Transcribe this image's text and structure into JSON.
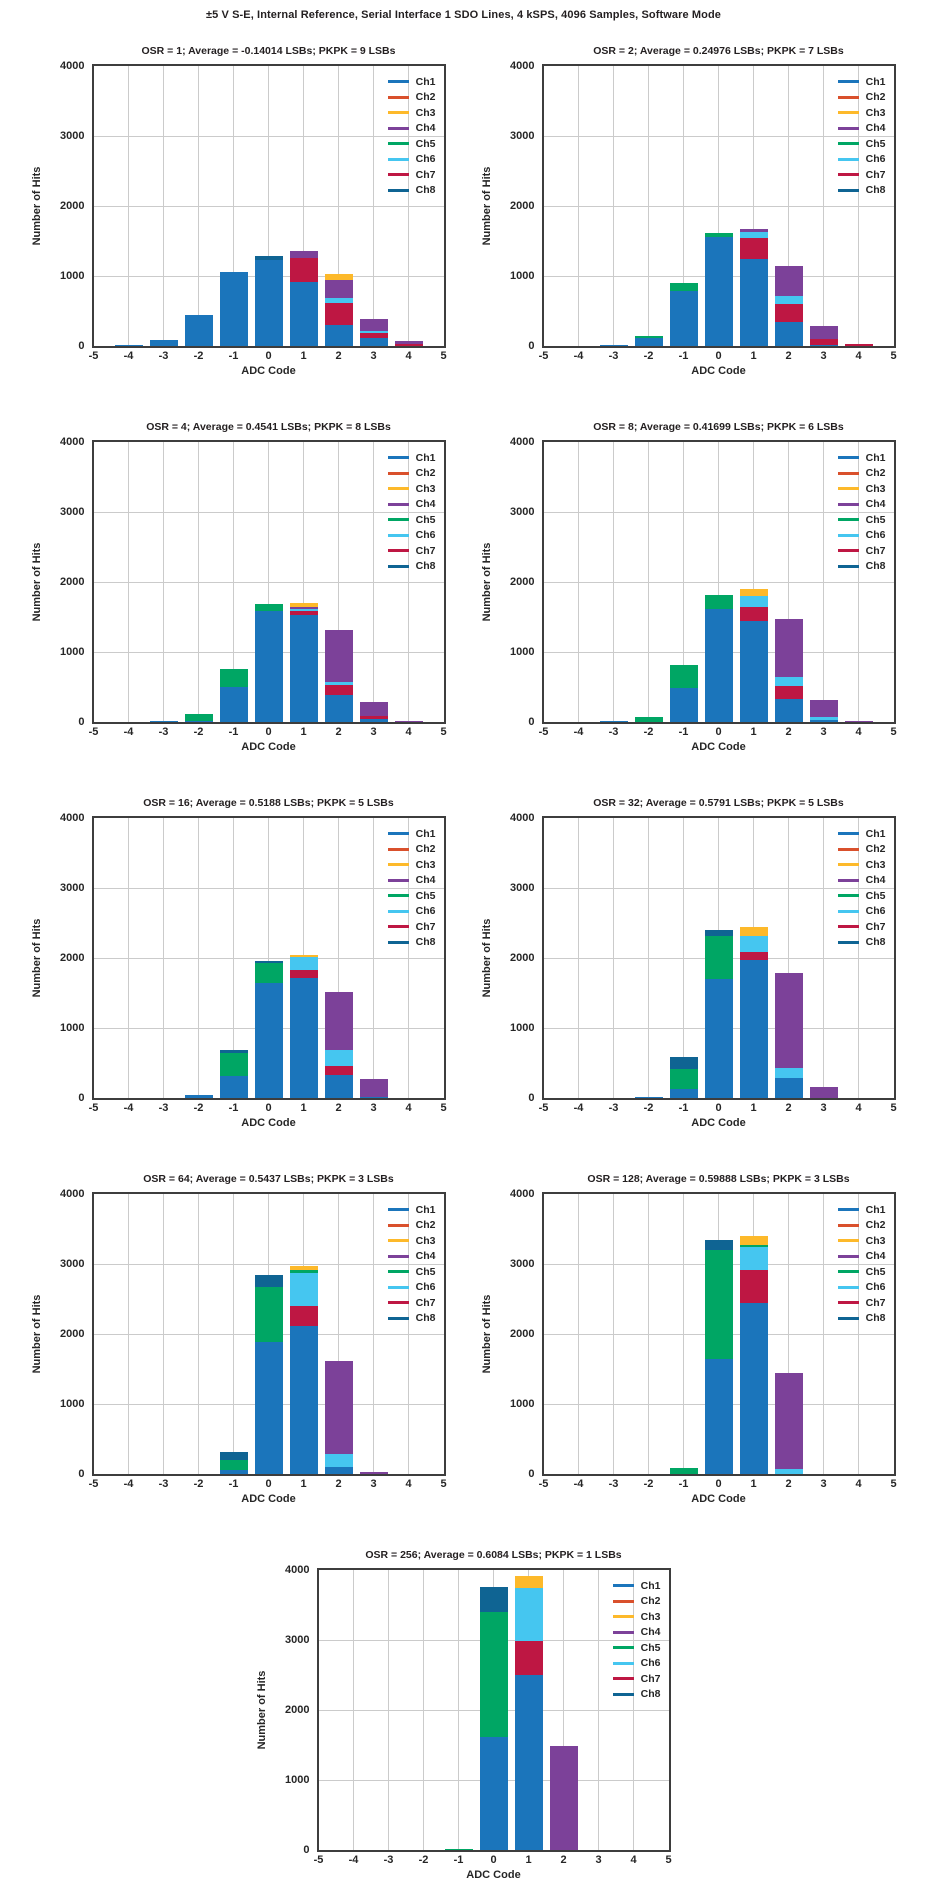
{
  "page": {
    "title": "±5 V S-E, Internal Reference, Serial Interface 1 SDO Lines, 4 kSPS, 4096 Samples, Software Mode"
  },
  "axis": {
    "xlabel": "ADC Code",
    "ylabel": "Number of Hits",
    "xlim": [
      -5,
      5
    ],
    "ylim": [
      0,
      4000
    ],
    "xticks": [
      -5,
      -4,
      -3,
      -2,
      -1,
      0,
      1,
      2,
      3,
      4,
      5
    ],
    "yticks": [
      0,
      1000,
      2000,
      3000,
      4000
    ],
    "grid": true
  },
  "legend": {
    "position": "top-right",
    "entries": [
      "Ch1",
      "Ch2",
      "Ch3",
      "Ch4",
      "Ch5",
      "Ch6",
      "Ch7",
      "Ch8"
    ]
  },
  "channel_colors": {
    "Ch1": "#1B75BB",
    "Ch2": "#D9502C",
    "Ch3": "#FDB92A",
    "Ch4": "#7C4199",
    "Ch5": "#00A664",
    "Ch6": "#45C6F0",
    "Ch7": "#BE1743",
    "Ch8": "#0F6493"
  },
  "chart_data": [
    {
      "type": "bar",
      "mode": "stacked",
      "osr": 1,
      "title": "OSR = 1; Average = -0.14014 LSBs; PKPK = 9 LSBs",
      "bars": [
        {
          "x": -4,
          "segments": [
            [
              "Ch1",
              15
            ]
          ]
        },
        {
          "x": -3,
          "segments": [
            [
              "Ch1",
              90
            ]
          ]
        },
        {
          "x": -2,
          "segments": [
            [
              "Ch1",
              440
            ]
          ]
        },
        {
          "x": -1,
          "segments": [
            [
              "Ch1",
              1060
            ]
          ]
        },
        {
          "x": 0,
          "segments": [
            [
              "Ch1",
              1230
            ],
            [
              "Ch8",
              50
            ]
          ]
        },
        {
          "x": 1,
          "segments": [
            [
              "Ch1",
              920
            ],
            [
              "Ch7",
              340
            ],
            [
              "Ch4",
              100
            ]
          ]
        },
        {
          "x": 2,
          "segments": [
            [
              "Ch1",
              300
            ],
            [
              "Ch7",
              320
            ],
            [
              "Ch6",
              60
            ],
            [
              "Ch4",
              270
            ],
            [
              "Ch3",
              80
            ]
          ]
        },
        {
          "x": 3,
          "segments": [
            [
              "Ch1",
              110
            ],
            [
              "Ch7",
              70
            ],
            [
              "Ch6",
              30
            ],
            [
              "Ch4",
              170
            ]
          ]
        },
        {
          "x": 4,
          "segments": [
            [
              "Ch7",
              30
            ],
            [
              "Ch4",
              40
            ]
          ]
        }
      ]
    },
    {
      "type": "bar",
      "mode": "stacked",
      "osr": 2,
      "title": "OSR = 2; Average = 0.24976 LSBs; PKPK = 7 LSBs",
      "bars": [
        {
          "x": -3,
          "segments": [
            [
              "Ch1",
              15
            ]
          ]
        },
        {
          "x": -2,
          "segments": [
            [
              "Ch1",
              120
            ],
            [
              "Ch5",
              20
            ]
          ]
        },
        {
          "x": -1,
          "segments": [
            [
              "Ch1",
              790
            ],
            [
              "Ch5",
              110
            ]
          ]
        },
        {
          "x": 0,
          "segments": [
            [
              "Ch1",
              1560
            ],
            [
              "Ch5",
              50
            ]
          ]
        },
        {
          "x": 1,
          "segments": [
            [
              "Ch1",
              1250
            ],
            [
              "Ch7",
              290
            ],
            [
              "Ch6",
              90
            ],
            [
              "Ch4",
              40
            ]
          ]
        },
        {
          "x": 2,
          "segments": [
            [
              "Ch1",
              340
            ],
            [
              "Ch7",
              260
            ],
            [
              "Ch6",
              120
            ],
            [
              "Ch4",
              430
            ]
          ]
        },
        {
          "x": 3,
          "segments": [
            [
              "Ch1",
              20
            ],
            [
              "Ch7",
              80
            ],
            [
              "Ch4",
              180
            ]
          ]
        },
        {
          "x": 4,
          "segments": [
            [
              "Ch7",
              25
            ]
          ]
        }
      ]
    },
    {
      "type": "bar",
      "mode": "stacked",
      "osr": 4,
      "title": "OSR = 4; Average = 0.4541 LSBs; PKPK = 8 LSBs",
      "bars": [
        {
          "x": -3,
          "segments": [
            [
              "Ch1",
              15
            ]
          ]
        },
        {
          "x": -2,
          "segments": [
            [
              "Ch1",
              10
            ],
            [
              "Ch5",
              110
            ]
          ]
        },
        {
          "x": -1,
          "segments": [
            [
              "Ch1",
              500
            ],
            [
              "Ch5",
              260
            ]
          ]
        },
        {
          "x": 0,
          "segments": [
            [
              "Ch1",
              1580
            ],
            [
              "Ch5",
              100
            ]
          ]
        },
        {
          "x": 1,
          "segments": [
            [
              "Ch1",
              1530
            ],
            [
              "Ch7",
              50
            ],
            [
              "Ch6",
              30
            ],
            [
              "Ch4",
              40
            ],
            [
              "Ch3",
              50
            ]
          ]
        },
        {
          "x": 2,
          "segments": [
            [
              "Ch1",
              390
            ],
            [
              "Ch7",
              140
            ],
            [
              "Ch6",
              40
            ],
            [
              "Ch4",
              750
            ]
          ]
        },
        {
          "x": 3,
          "segments": [
            [
              "Ch1",
              40
            ],
            [
              "Ch7",
              40
            ],
            [
              "Ch4",
              200
            ]
          ]
        },
        {
          "x": 4,
          "segments": [
            [
              "Ch4",
              15
            ]
          ]
        }
      ]
    },
    {
      "type": "bar",
      "mode": "stacked",
      "osr": 8,
      "title": "OSR = 8; Average = 0.41699 LSBs; PKPK = 6 LSBs",
      "bars": [
        {
          "x": -3,
          "segments": [
            [
              "Ch1",
              15
            ]
          ]
        },
        {
          "x": -2,
          "segments": [
            [
              "Ch5",
              70
            ]
          ]
        },
        {
          "x": -1,
          "segments": [
            [
              "Ch1",
              490
            ],
            [
              "Ch5",
              320
            ]
          ]
        },
        {
          "x": 0,
          "segments": [
            [
              "Ch1",
              1620
            ],
            [
              "Ch5",
              190
            ]
          ]
        },
        {
          "x": 1,
          "segments": [
            [
              "Ch1",
              1450
            ],
            [
              "Ch7",
              200
            ],
            [
              "Ch6",
              150
            ],
            [
              "Ch3",
              100
            ]
          ]
        },
        {
          "x": 2,
          "segments": [
            [
              "Ch1",
              330
            ],
            [
              "Ch7",
              180
            ],
            [
              "Ch6",
              140
            ],
            [
              "Ch4",
              820
            ]
          ]
        },
        {
          "x": 3,
          "segments": [
            [
              "Ch1",
              30
            ],
            [
              "Ch6",
              40
            ],
            [
              "Ch4",
              250
            ]
          ]
        },
        {
          "x": 4,
          "segments": [
            [
              "Ch4",
              15
            ]
          ]
        }
      ]
    },
    {
      "type": "bar",
      "mode": "stacked",
      "osr": 16,
      "title": "OSR = 16; Average = 0.5188 LSBs; PKPK = 5 LSBs",
      "bars": [
        {
          "x": -2,
          "segments": [
            [
              "Ch1",
              50
            ]
          ]
        },
        {
          "x": -1,
          "segments": [
            [
              "Ch1",
              320
            ],
            [
              "Ch5",
              330
            ],
            [
              "Ch8",
              40
            ]
          ]
        },
        {
          "x": 0,
          "segments": [
            [
              "Ch1",
              1650
            ],
            [
              "Ch5",
              280
            ],
            [
              "Ch8",
              30
            ]
          ]
        },
        {
          "x": 1,
          "segments": [
            [
              "Ch1",
              1720
            ],
            [
              "Ch7",
              110
            ],
            [
              "Ch6",
              180
            ],
            [
              "Ch3",
              30
            ]
          ]
        },
        {
          "x": 2,
          "segments": [
            [
              "Ch1",
              330
            ],
            [
              "Ch7",
              130
            ],
            [
              "Ch6",
              220
            ],
            [
              "Ch4",
              840
            ]
          ]
        },
        {
          "x": 3,
          "segments": [
            [
              "Ch1",
              20
            ],
            [
              "Ch4",
              250
            ]
          ]
        }
      ]
    },
    {
      "type": "bar",
      "mode": "stacked",
      "osr": 32,
      "title": "OSR = 32; Average = 0.5791 LSBs; PKPK = 5 LSBs",
      "bars": [
        {
          "x": -2,
          "segments": [
            [
              "Ch1",
              15
            ]
          ]
        },
        {
          "x": -1,
          "segments": [
            [
              "Ch1",
              130
            ],
            [
              "Ch5",
              290
            ],
            [
              "Ch8",
              160
            ]
          ]
        },
        {
          "x": 0,
          "segments": [
            [
              "Ch1",
              1700
            ],
            [
              "Ch5",
              610
            ],
            [
              "Ch8",
              90
            ]
          ]
        },
        {
          "x": 1,
          "segments": [
            [
              "Ch1",
              1970
            ],
            [
              "Ch7",
              120
            ],
            [
              "Ch6",
              220
            ],
            [
              "Ch3",
              140
            ]
          ]
        },
        {
          "x": 2,
          "segments": [
            [
              "Ch1",
              280
            ],
            [
              "Ch6",
              150
            ],
            [
              "Ch4",
              1350
            ]
          ]
        },
        {
          "x": 3,
          "segments": [
            [
              "Ch4",
              160
            ]
          ]
        }
      ]
    },
    {
      "type": "bar",
      "mode": "stacked",
      "osr": 64,
      "title": "OSR = 64; Average = 0.5437 LSBs; PKPK = 3 LSBs",
      "bars": [
        {
          "x": -1,
          "segments": [
            [
              "Ch1",
              60
            ],
            [
              "Ch5",
              140
            ],
            [
              "Ch8",
              110
            ]
          ]
        },
        {
          "x": 0,
          "segments": [
            [
              "Ch1",
              1880
            ],
            [
              "Ch5",
              790
            ],
            [
              "Ch8",
              170
            ]
          ]
        },
        {
          "x": 1,
          "segments": [
            [
              "Ch1",
              2120
            ],
            [
              "Ch7",
              280
            ],
            [
              "Ch6",
              470
            ],
            [
              "Ch5",
              40
            ],
            [
              "Ch3",
              60
            ]
          ]
        },
        {
          "x": 2,
          "segments": [
            [
              "Ch1",
              100
            ],
            [
              "Ch6",
              190
            ],
            [
              "Ch4",
              1330
            ]
          ]
        },
        {
          "x": 3,
          "segments": [
            [
              "Ch4",
              30
            ]
          ]
        }
      ]
    },
    {
      "type": "bar",
      "mode": "stacked",
      "osr": 128,
      "title": "OSR = 128; Average = 0.59888 LSBs; PKPK = 3 LSBs",
      "bars": [
        {
          "x": -1,
          "segments": [
            [
              "Ch5",
              90
            ]
          ]
        },
        {
          "x": 0,
          "segments": [
            [
              "Ch1",
              1650
            ],
            [
              "Ch5",
              1550
            ],
            [
              "Ch8",
              150
            ]
          ]
        },
        {
          "x": 1,
          "segments": [
            [
              "Ch1",
              2450
            ],
            [
              "Ch7",
              460
            ],
            [
              "Ch6",
              330
            ],
            [
              "Ch5",
              30
            ],
            [
              "Ch3",
              130
            ]
          ]
        },
        {
          "x": 2,
          "segments": [
            [
              "Ch6",
              70
            ],
            [
              "Ch4",
              1370
            ]
          ]
        }
      ]
    },
    {
      "type": "bar",
      "mode": "stacked",
      "osr": 256,
      "title": "OSR = 256; Average = 0.6084 LSBs; PKPK = 1 LSBs",
      "bars": [
        {
          "x": -1,
          "segments": [
            [
              "Ch5",
              15
            ]
          ]
        },
        {
          "x": 0,
          "segments": [
            [
              "Ch1",
              1620
            ],
            [
              "Ch5",
              1780
            ],
            [
              "Ch8",
              360
            ]
          ]
        },
        {
          "x": 1,
          "segments": [
            [
              "Ch1",
              2500
            ],
            [
              "Ch7",
              480
            ],
            [
              "Ch6",
              760
            ],
            [
              "Ch3",
              170
            ]
          ]
        },
        {
          "x": 2,
          "segments": [
            [
              "Ch4",
              1490
            ]
          ]
        }
      ]
    }
  ]
}
